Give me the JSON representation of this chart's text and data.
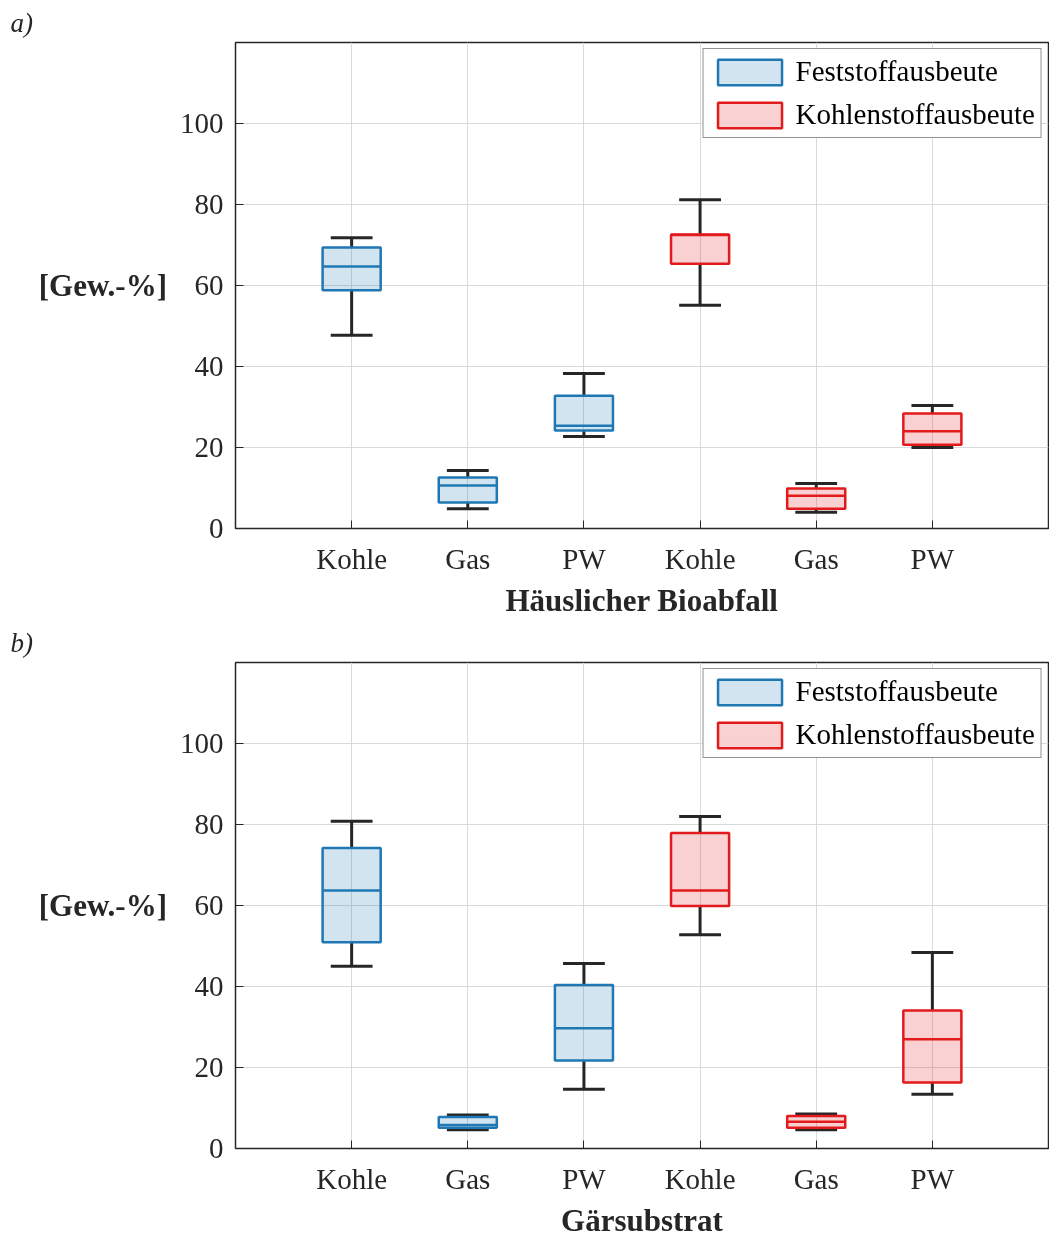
{
  "chart_data": [
    {
      "type": "box",
      "title": "a)",
      "xlabel": "Häuslicher Bioabfall",
      "ylabel": "[Gew.-%]",
      "categories": [
        "Kohle",
        "Gas",
        "PW",
        "Kohle",
        "Gas",
        "PW"
      ],
      "ylim": [
        0,
        120
      ],
      "yticks": [
        0,
        20,
        40,
        60,
        80,
        100
      ],
      "grid": true,
      "legend": "top right",
      "series": [
        {
          "name": "Feststoffausbeute",
          "color": "#1f77b4",
          "boxes": [
            {
              "low": 47.7,
              "q1": 58.8,
              "median": 64.7,
              "q3": 69.4,
              "high": 71.8
            },
            {
              "low": 4.9,
              "q1": 6.4,
              "median": 10.6,
              "q3": 12.6,
              "high": 14.3
            },
            {
              "low": 22.7,
              "q1": 24.2,
              "median": 25.4,
              "q3": 32.8,
              "high": 38.3
            },
            null,
            null,
            null
          ]
        },
        {
          "name": "Kohlenstoffausbeute",
          "color": "#e31a1c",
          "boxes": [
            null,
            null,
            null,
            {
              "low": 55.1,
              "q1": 65.4,
              "median": 72.5,
              "q3": 72.6,
              "high": 81.2
            },
            {
              "low": 4.0,
              "q1": 4.9,
              "median": 8.1,
              "q3": 9.9,
              "high": 11.1
            },
            {
              "low": 20.0,
              "q1": 20.7,
              "median": 24.0,
              "q3": 28.4,
              "high": 30.4
            }
          ]
        }
      ]
    },
    {
      "type": "box",
      "title": "b)",
      "xlabel": "Gärsubstrat",
      "ylabel": "[Gew.-%]",
      "categories": [
        "Kohle",
        "Gas",
        "PW",
        "Kohle",
        "Gas",
        "PW"
      ],
      "ylim": [
        0,
        120
      ],
      "yticks": [
        0,
        20,
        40,
        60,
        80,
        100
      ],
      "grid": true,
      "legend": "top right",
      "series": [
        {
          "name": "Feststoffausbeute",
          "color": "#1f77b4",
          "boxes": [
            {
              "low": 45.0,
              "q1": 50.9,
              "median": 63.7,
              "q3": 74.2,
              "high": 80.8
            },
            {
              "low": 4.6,
              "q1": 5.1,
              "median": 5.8,
              "q3": 7.8,
              "high": 8.3
            },
            {
              "low": 14.6,
              "q1": 21.7,
              "median": 29.7,
              "q3": 40.4,
              "high": 45.7
            },
            null,
            null,
            null
          ]
        },
        {
          "name": "Kohlenstoffausbeute",
          "color": "#e31a1c",
          "boxes": [
            null,
            null,
            null,
            {
              "low": 52.8,
              "q1": 59.9,
              "median": 63.7,
              "q3": 77.9,
              "high": 82.0
            },
            {
              "low": 4.6,
              "q1": 5.1,
              "median": 6.6,
              "q3": 8.0,
              "high": 8.5
            },
            {
              "low": 13.4,
              "q1": 16.3,
              "median": 27.0,
              "q3": 34.1,
              "high": 48.4
            }
          ]
        }
      ]
    }
  ]
}
